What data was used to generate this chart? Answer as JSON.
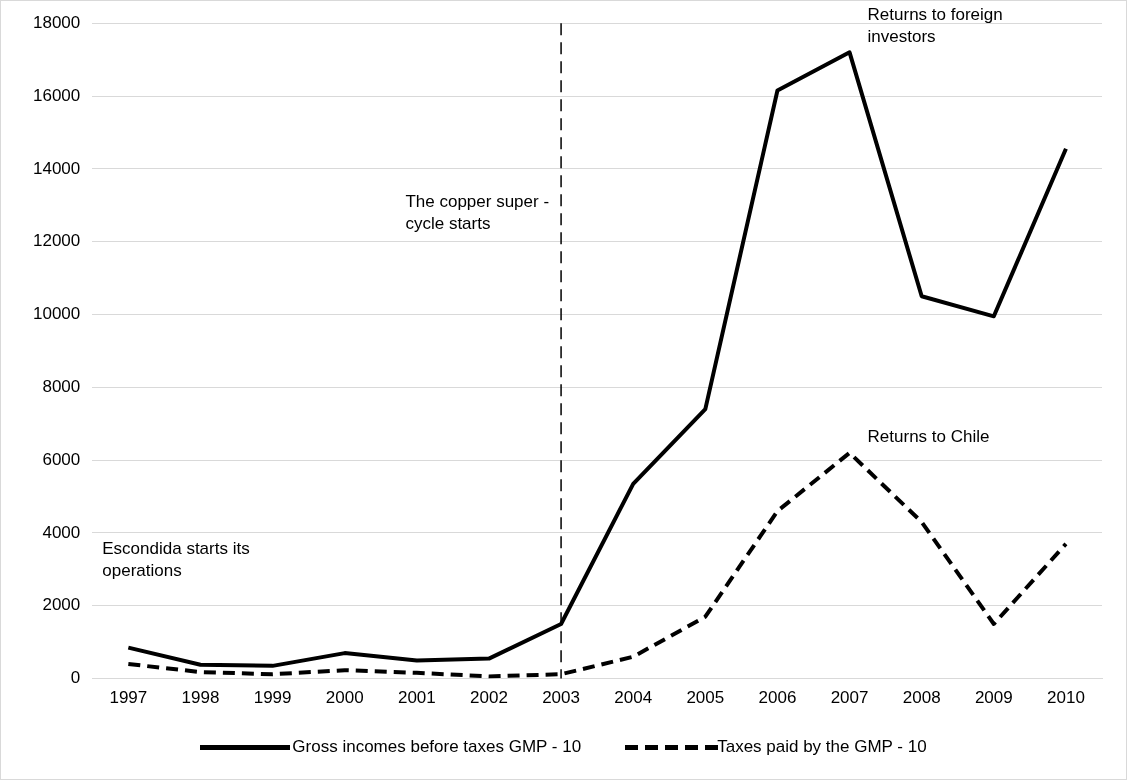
{
  "chart_data": {
    "type": "line",
    "categories": [
      "1997",
      "1998",
      "1999",
      "2000",
      "2001",
      "2002",
      "2003",
      "2004",
      "2005",
      "2006",
      "2007",
      "2008",
      "2009",
      "2010"
    ],
    "series": [
      {
        "name": "Gross incomes before taxes GMP - 10",
        "color": "#000000",
        "line_style": "solid",
        "values": [
          850,
          380,
          350,
          700,
          500,
          550,
          1500,
          5350,
          7400,
          16150,
          17200,
          10500,
          9950,
          14550
        ]
      },
      {
        "name": "Taxes paid by the GMP - 10",
        "color": "#000000",
        "line_style": "dashed",
        "values": [
          400,
          180,
          120,
          230,
          160,
          60,
          120,
          600,
          1700,
          4600,
          6200,
          4300,
          1500,
          3700
        ]
      }
    ],
    "ylim": [
      0,
      18000
    ],
    "yticks": [
      0,
      2000,
      4000,
      6000,
      8000,
      10000,
      12000,
      14000,
      16000,
      18000
    ],
    "grid": "y",
    "legend": "bottom",
    "marker": "none",
    "ref_lines": [
      {
        "axis": "x",
        "value": "2003",
        "color": "#000000",
        "line_style": "dashed"
      }
    ],
    "annotations": [
      "The copper super - cycle starts",
      {
        "text": "Returns to foreign investors",
        "x": "2007",
        "y": 17200
      },
      {
        "text": "Returns to Chile",
        "x": "2007",
        "y": 6200
      },
      "Escondida starts its operations"
    ]
  }
}
